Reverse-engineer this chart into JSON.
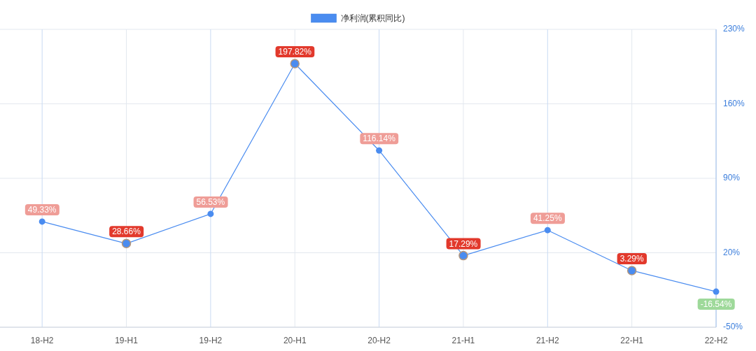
{
  "chart_data": {
    "type": "line",
    "categories": [
      "18-H2",
      "19-H1",
      "19-H2",
      "20-H1",
      "20-H2",
      "21-H1",
      "21-H2",
      "22-H1",
      "22-H2"
    ],
    "series": [
      {
        "name": "净利润(累积同比)",
        "color": "#4a8cf0",
        "values": [
          49.33,
          28.66,
          56.53,
          197.82,
          116.14,
          17.29,
          41.25,
          3.29,
          -16.54
        ],
        "value_labels": [
          "49.33%",
          "28.66%",
          "56.53%",
          "197.82%",
          "116.14%",
          "17.29%",
          "41.25%",
          "3.29%",
          "-16.54%"
        ]
      }
    ],
    "ylim": [
      -50,
      230
    ],
    "yticks": [
      {
        "value": -50,
        "label": "-50%"
      },
      {
        "value": 20,
        "label": "20%"
      },
      {
        "value": 90,
        "label": "90%"
      },
      {
        "value": 160,
        "label": "160%"
      },
      {
        "value": 230,
        "label": "230%"
      }
    ],
    "grid": true,
    "legend": "top",
    "marker": "circle"
  }
}
